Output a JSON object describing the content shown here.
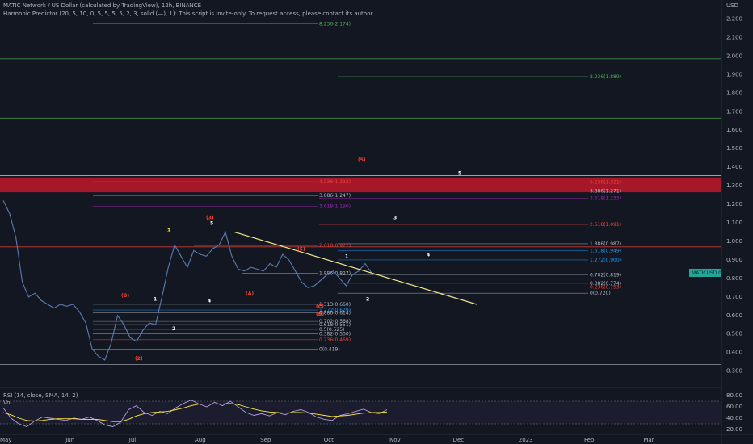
{
  "header": {
    "title": "MATIC Network / US Dollar (calculated by TradingView), 12h, BINANCE",
    "indicator": "Harmonic Predictor (20, 5, 10, 0, 5, 5, 5, 5, 2, 3, solid (—), 1): This script is invite-only. To request access, please contact its author."
  },
  "rsi_panel": {
    "title": "RSI (14, close, SMA, 14, 2)",
    "vol_label": "Vol",
    "ticks": [
      "80.00",
      "60.00",
      "40.00",
      "20.00"
    ]
  },
  "price_tag": {
    "value": "MATICUSD",
    "text": "0.827",
    "color": "#26a69a"
  },
  "chart_data": {
    "type": "line",
    "currency": "USD",
    "y_axis": {
      "label": "USD",
      "ylim": [
        0.22,
        2.25
      ],
      "ticks": [
        "2.200",
        "2.100",
        "2.000",
        "1.900",
        "1.800",
        "1.700",
        "1.600",
        "1.500",
        "1.400",
        "1.300",
        "1.200",
        "1.100",
        "1.000",
        "0.900",
        "0.800",
        "0.700",
        "0.600",
        "0.500",
        "0.400",
        "0.300"
      ]
    },
    "x_axis": {
      "ticks": [
        "May",
        "Jun",
        "Jul",
        "Aug",
        "Sep",
        "Oct",
        "Nov",
        "Dec",
        "2023",
        "Feb",
        "Mar"
      ]
    },
    "series": [
      {
        "x": [
          "2022-05-01",
          "2022-05-04",
          "2022-05-07",
          "2022-05-10",
          "2022-05-13",
          "2022-05-16",
          "2022-05-19",
          "2022-05-22",
          "2022-05-25",
          "2022-05-28",
          "2022-05-31",
          "2022-06-03",
          "2022-06-06",
          "2022-06-09",
          "2022-06-12",
          "2022-06-15",
          "2022-06-18",
          "2022-06-21",
          "2022-06-24",
          "2022-06-27",
          "2022-06-30",
          "2022-07-03",
          "2022-07-06",
          "2022-07-09",
          "2022-07-12",
          "2022-07-15",
          "2022-07-18",
          "2022-07-21",
          "2022-07-24",
          "2022-07-27",
          "2022-07-30",
          "2022-08-02",
          "2022-08-05",
          "2022-08-08",
          "2022-08-11",
          "2022-08-14",
          "2022-08-17",
          "2022-08-20",
          "2022-08-23",
          "2022-08-26",
          "2022-08-29",
          "2022-09-01",
          "2022-09-04",
          "2022-09-07",
          "2022-09-10",
          "2022-09-13",
          "2022-09-16",
          "2022-09-19",
          "2022-09-22",
          "2022-09-25",
          "2022-09-28",
          "2022-10-01",
          "2022-10-04",
          "2022-10-07",
          "2022-10-10",
          "2022-10-13",
          "2022-10-16",
          "2022-10-19",
          "2022-10-22"
        ],
        "values": [
          1.22,
          1.15,
          1.02,
          0.78,
          0.7,
          0.72,
          0.68,
          0.66,
          0.64,
          0.66,
          0.65,
          0.66,
          0.62,
          0.56,
          0.42,
          0.38,
          0.36,
          0.45,
          0.6,
          0.55,
          0.48,
          0.46,
          0.52,
          0.56,
          0.55,
          0.7,
          0.86,
          0.98,
          0.92,
          0.86,
          0.95,
          0.93,
          0.92,
          0.96,
          0.98,
          1.05,
          0.92,
          0.85,
          0.84,
          0.86,
          0.85,
          0.84,
          0.88,
          0.86,
          0.93,
          0.9,
          0.84,
          0.78,
          0.75,
          0.76,
          0.79,
          0.82,
          0.84,
          0.8,
          0.76,
          0.82,
          0.84,
          0.88,
          0.83
        ]
      }
    ],
    "rsi": {
      "ylim": [
        20,
        80
      ],
      "values": [
        58,
        40,
        30,
        25,
        35,
        42,
        40,
        38,
        36,
        40,
        38,
        42,
        36,
        28,
        25,
        33,
        55,
        62,
        50,
        45,
        52,
        48,
        58,
        66,
        72,
        65,
        60,
        68,
        62,
        70,
        60,
        50,
        45,
        48,
        44,
        50,
        46,
        52,
        55,
        50,
        42,
        38,
        36,
        45,
        48,
        52,
        56,
        50,
        48,
        55
      ],
      "ma_values": [
        50,
        46,
        40,
        36,
        35,
        36,
        38,
        39,
        39,
        39,
        38,
        38,
        38,
        36,
        34,
        34,
        38,
        44,
        48,
        50,
        51,
        52,
        55,
        58,
        62,
        65,
        65,
        65,
        65,
        66,
        64,
        60,
        56,
        53,
        51,
        50,
        49,
        50,
        50,
        49,
        47,
        45,
        43,
        44,
        45,
        47,
        49,
        50,
        50,
        51
      ]
    }
  },
  "fib_labels": [
    {
      "text": "8.236(2.174)",
      "color": "#4caf50"
    },
    {
      "text": "8.236(1.889)",
      "color": "#4caf50"
    },
    {
      "text": "4.236(1.322)",
      "color": "#f44336"
    },
    {
      "text": "6.236(1.321)",
      "color": "#f44336"
    },
    {
      "text": "3.886(1.247)",
      "color": "#b2b5be"
    },
    {
      "text": "3.886(1.271)",
      "color": "#b2b5be"
    },
    {
      "text": "3.618(1.190)",
      "color": "#9c27b0"
    },
    {
      "text": "3.618(1.233)",
      "color": "#9c27b0"
    },
    {
      "text": "2.618(1.091)",
      "color": "#f44336"
    },
    {
      "text": "1.886(0.987)",
      "color": "#b2b5be"
    },
    {
      "text": "2.618(0.977)",
      "color": "#f44336"
    },
    {
      "text": "1.618(0.949)",
      "color": "#2196f3"
    },
    {
      "text": "1.272(0.900)",
      "color": "#2196f3"
    },
    {
      "text": "1.886(0.827)",
      "color": "#b2b5be"
    },
    {
      "text": "0.702(0.819)",
      "color": "#b2b5be"
    },
    {
      "text": "0.382(0.774)",
      "color": "#b2b5be"
    },
    {
      "text": "0.236(0.753)",
      "color": "#f44336"
    },
    {
      "text": "0(0.720)",
      "color": "#b2b5be"
    },
    {
      "text": "1.272(0.629)",
      "color": "#2196f3"
    },
    {
      "text": "1.313(0.660)",
      "color": "#b2b5be"
    },
    {
      "text": "0.886(0.614)",
      "color": "#b2b5be"
    },
    {
      "text": "0.702(0.568)",
      "color": "#b2b5be"
    },
    {
      "text": "0.618(0.551)",
      "color": "#b2b5be"
    },
    {
      "text": "0.5(0.525)",
      "color": "#b2b5be"
    },
    {
      "text": "0.382(0.500)",
      "color": "#b2b5be"
    },
    {
      "text": "0.236(0.469)",
      "color": "#f44336"
    },
    {
      "text": "0(0.419)",
      "color": "#b2b5be"
    }
  ],
  "wave_labels": [
    {
      "text": "(5)",
      "color": "#f44336"
    },
    {
      "text": "5",
      "color": "#ffffff"
    },
    {
      "text": "(3)",
      "color": "#f44336"
    },
    {
      "text": "5",
      "color": "#ffffff"
    },
    {
      "text": "3",
      "color": "#ffffff"
    },
    {
      "text": "3",
      "color": "#ffeb3b"
    },
    {
      "text": "(5)",
      "color": "#f44336"
    },
    {
      "text": "4",
      "color": "#ffffff"
    },
    {
      "text": "1",
      "color": "#ffffff"
    },
    {
      "text": "2",
      "color": "#ffffff"
    },
    {
      "text": "(A)",
      "color": "#f44336"
    },
    {
      "text": "(B)",
      "color": "#f44336"
    },
    {
      "text": "1",
      "color": "#ffffff"
    },
    {
      "text": "4",
      "color": "#ffffff"
    },
    {
      "text": "2",
      "color": "#ffffff"
    },
    {
      "text": "(C)",
      "color": "#f44336"
    },
    {
      "text": "(B)",
      "color": "#f44336"
    },
    {
      "text": "(2)",
      "color": "#f44336"
    }
  ],
  "colors": {
    "background": "#131722",
    "price_line": "#5b7bb0",
    "trendline": "#f0e68c",
    "resistance_zone": "#c0182a",
    "rsi_line": "#b39ddb",
    "rsi_ma": "#ffeb3b"
  }
}
